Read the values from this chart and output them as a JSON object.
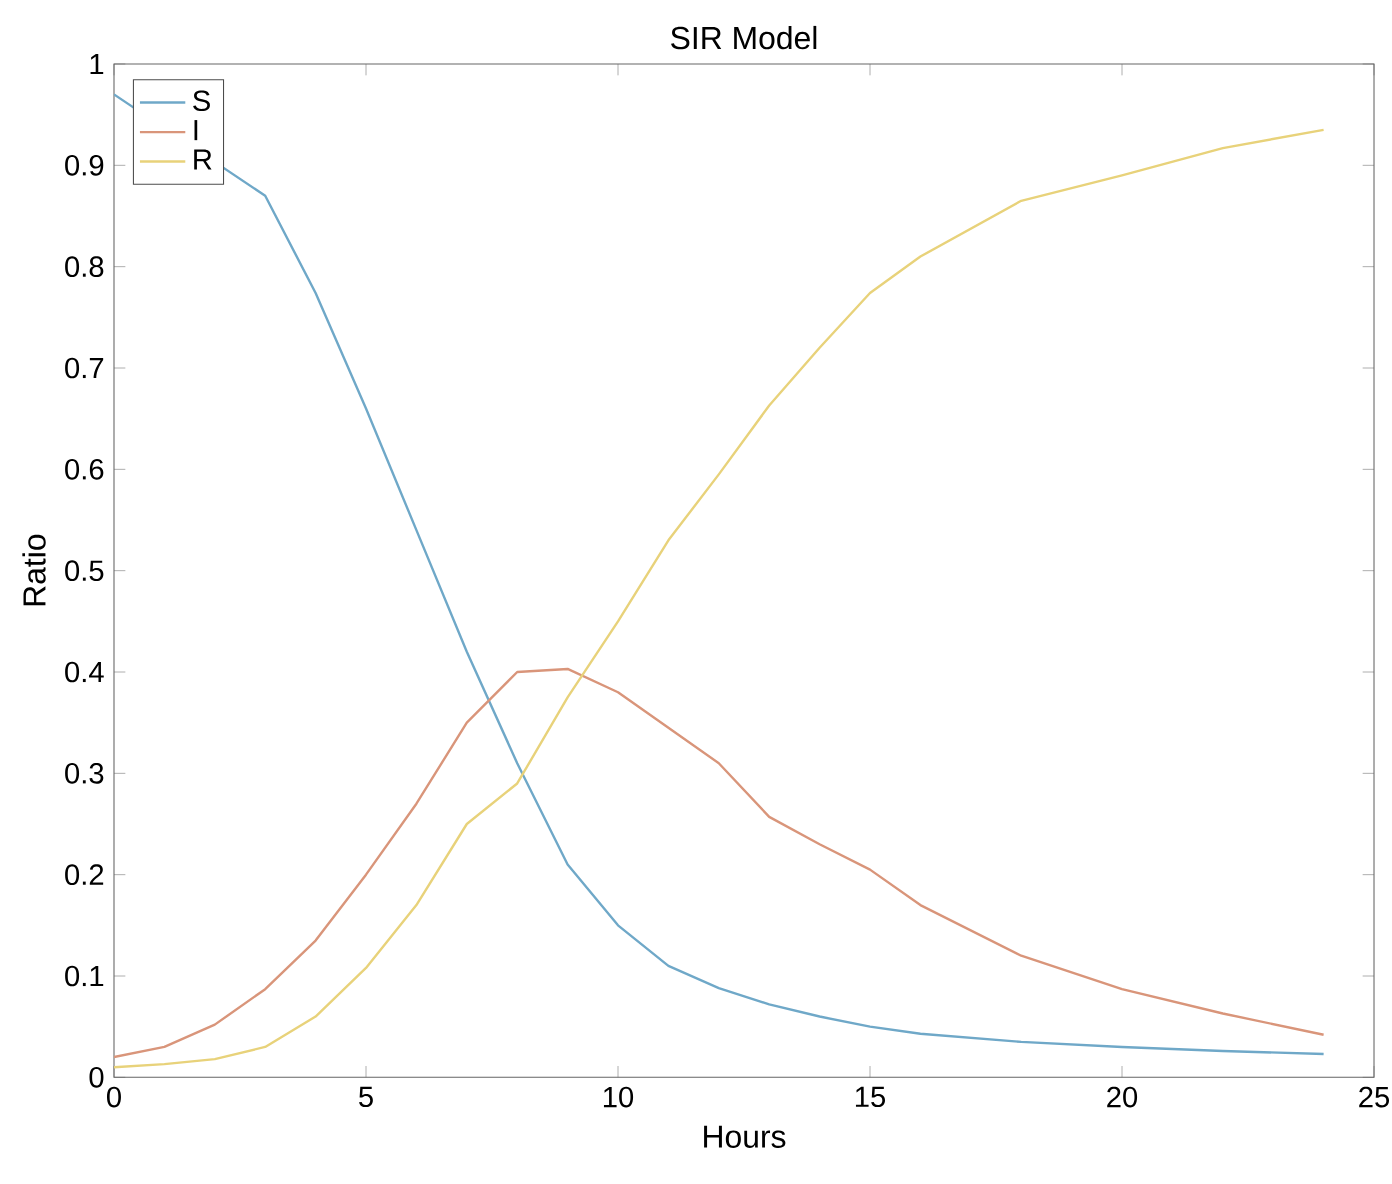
{
  "chart_data": {
    "type": "line",
    "title": "SIR Model",
    "xlabel": "Hours",
    "ylabel": "Ratio",
    "x": [
      0,
      1,
      2,
      3,
      4,
      5,
      6,
      7,
      8,
      9,
      10,
      11,
      12,
      13,
      14,
      15,
      16,
      18,
      20,
      22,
      24
    ],
    "series": [
      {
        "name": "S",
        "color": "#6fa8c8",
        "values": [
          0.97,
          null,
          null,
          0.87,
          0.774,
          0.66,
          0.54,
          0.42,
          0.31,
          0.21,
          0.15,
          0.11,
          0.088,
          0.072,
          0.06,
          0.05,
          0.043,
          0.035,
          0.03,
          0.026,
          0.023
        ]
      },
      {
        "name": "I",
        "color": "#d9957a",
        "values": [
          0.02,
          0.03,
          0.052,
          0.087,
          0.135,
          0.2,
          0.27,
          0.35,
          0.4,
          0.403,
          0.38,
          0.345,
          0.31,
          0.257,
          0.23,
          0.205,
          0.17,
          0.12,
          0.087,
          0.063,
          0.042
        ]
      },
      {
        "name": "R",
        "color": "#e8d27a",
        "values": [
          0.01,
          0.013,
          0.018,
          0.03,
          0.06,
          0.108,
          0.17,
          0.25,
          0.29,
          0.375,
          0.45,
          0.53,
          0.595,
          0.663,
          0.72,
          0.774,
          0.81,
          0.865,
          0.89,
          0.917,
          0.935
        ]
      }
    ],
    "xlim": [
      0,
      25
    ],
    "xticks": [
      0,
      5,
      10,
      15,
      20,
      25
    ],
    "ylim": [
      0,
      1
    ],
    "yticks": [
      0,
      0.1,
      0.2,
      0.3,
      0.4,
      0.5,
      0.6,
      0.7,
      0.8,
      0.9,
      1
    ],
    "legend": "top left",
    "grid": false,
    "marker": "none",
    "line_style": "solid"
  }
}
